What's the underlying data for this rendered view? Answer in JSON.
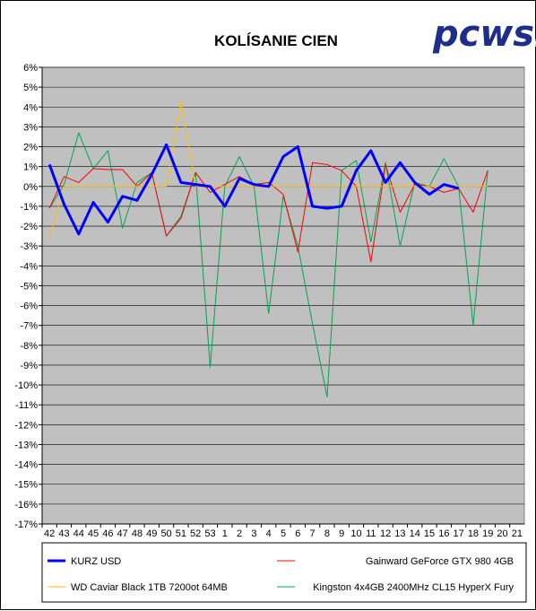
{
  "chart_data": {
    "type": "line",
    "title": "KOLÍSANIE CIEN",
    "logo": "pcwsk",
    "x": [
      "42",
      "43",
      "44",
      "45",
      "46",
      "47",
      "48",
      "49",
      "50",
      "51",
      "52",
      "53",
      "1",
      "2",
      "3",
      "4",
      "5",
      "6",
      "7",
      "8",
      "9",
      "10",
      "11",
      "12",
      "13",
      "14",
      "15",
      "16",
      "17",
      "18",
      "19",
      "20",
      "21"
    ],
    "ylim": [
      -17,
      6
    ],
    "yticks": [
      "6%",
      "5%",
      "4%",
      "3%",
      "2%",
      "1%",
      "0%",
      "-1%",
      "-2%",
      "-3%",
      "-4%",
      "-5%",
      "-6%",
      "-7%",
      "-8%",
      "-9%",
      "-10%",
      "-11%",
      "-12%",
      "-13%",
      "-14%",
      "-15%",
      "-16%",
      "-17%"
    ],
    "grid": true,
    "plot_background": "#c0c0c0",
    "legend_position": "bottom",
    "series": [
      {
        "name": "KURZ USD",
        "color": "#0000ff",
        "width": "bold",
        "values": [
          1.1,
          -0.9,
          -2.4,
          -0.8,
          -1.8,
          -0.5,
          -0.7,
          0.6,
          2.1,
          0.2,
          0.1,
          0.0,
          -1.0,
          0.4,
          0.1,
          0.0,
          1.5,
          2.0,
          -1.0,
          -1.1,
          -1.0,
          0.8,
          1.8,
          0.2,
          1.2,
          0.2,
          -0.4,
          0.1,
          -0.1,
          null,
          null,
          null,
          null
        ]
      },
      {
        "name": "Gainward GeForce GTX 980 4GB",
        "color": "#ff0000",
        "width": "thin",
        "values": [
          -1.1,
          0.5,
          0.2,
          0.9,
          0.85,
          0.85,
          0.0,
          0.7,
          -2.5,
          -1.6,
          0.7,
          -0.3,
          0.1,
          0.5,
          0.1,
          0.2,
          -0.4,
          -3.3,
          1.2,
          1.1,
          0.8,
          0.0,
          -3.8,
          1.1,
          -1.3,
          0.1,
          0.0,
          -0.3,
          -0.1,
          -1.3,
          0.8,
          null,
          null
        ]
      },
      {
        "name": "WD Caviar Black 1TB 7200ot 64MB",
        "color": "#ffc000",
        "width": "thin",
        "values": [
          -2.6,
          0.0,
          0.0,
          0.0,
          0.0,
          0.0,
          0.0,
          0.0,
          0.0,
          4.3,
          0.0,
          0.0,
          0.0,
          0.0,
          0.0,
          0.0,
          0.0,
          0.0,
          0.0,
          0.0,
          0.0,
          0.0,
          0.0,
          0.0,
          0.0,
          0.0,
          0.0,
          0.0,
          0.0,
          0.0,
          0.0,
          null,
          null
        ]
      },
      {
        "name": "Kingston 4x4GB 2400MHz CL15 HyperX Fury",
        "color": "#00a550",
        "width": "thin",
        "values": [
          -1.1,
          0.1,
          2.7,
          0.9,
          1.8,
          -2.1,
          0.2,
          0.7,
          -2.5,
          -1.5,
          0.7,
          -9.1,
          0.0,
          1.5,
          0.0,
          -6.4,
          -0.5,
          -3.0,
          -6.9,
          -10.6,
          0.8,
          1.3,
          -2.8,
          1.2,
          -3.0,
          0.2,
          0.0,
          1.4,
          0.0,
          -7.0,
          0.8,
          null,
          null
        ]
      }
    ]
  }
}
